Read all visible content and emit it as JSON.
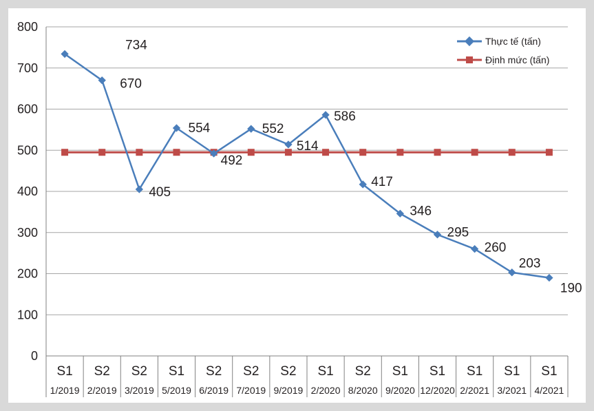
{
  "chart_data": {
    "type": "line",
    "title": "",
    "xlabel": "",
    "ylabel": "",
    "ylim": [
      0,
      800
    ],
    "yticks": [
      0,
      100,
      200,
      300,
      400,
      500,
      600,
      700,
      800
    ],
    "grid": true,
    "legend_position": "top-right",
    "categories": [
      {
        "top": "S1",
        "bottom": "1/2019"
      },
      {
        "top": "S2",
        "bottom": "2/2019"
      },
      {
        "top": "S2",
        "bottom": "3/2019"
      },
      {
        "top": "S1",
        "bottom": "5/2019"
      },
      {
        "top": "S2",
        "bottom": "6/2019"
      },
      {
        "top": "S2",
        "bottom": "7/2019"
      },
      {
        "top": "S2",
        "bottom": "9/2019"
      },
      {
        "top": "S1",
        "bottom": "2/2020"
      },
      {
        "top": "S2",
        "bottom": "8/2020"
      },
      {
        "top": "S1",
        "bottom": "9/2020"
      },
      {
        "top": "S1",
        "bottom": "12/2020"
      },
      {
        "top": "S1",
        "bottom": "2/2021"
      },
      {
        "top": "S1",
        "bottom": "3/2021"
      },
      {
        "top": "S1",
        "bottom": "4/2021"
      }
    ],
    "series": [
      {
        "name": "Thực tế (tấn)",
        "color": "#4a7ebb",
        "marker": "diamond",
        "values": [
          734,
          670,
          405,
          554,
          492,
          552,
          514,
          586,
          417,
          346,
          295,
          260,
          203,
          190
        ],
        "labels": [
          "734",
          "670",
          "405",
          "554",
          "492",
          "552",
          "514",
          "586",
          "417",
          "346",
          "295",
          "260",
          "203",
          "190"
        ]
      },
      {
        "name": "Định mức (tấn)",
        "color": "#be4b48",
        "marker": "square",
        "values": [
          495,
          495,
          495,
          495,
          495,
          495,
          495,
          495,
          495,
          495,
          495,
          495,
          495,
          495
        ]
      }
    ]
  }
}
